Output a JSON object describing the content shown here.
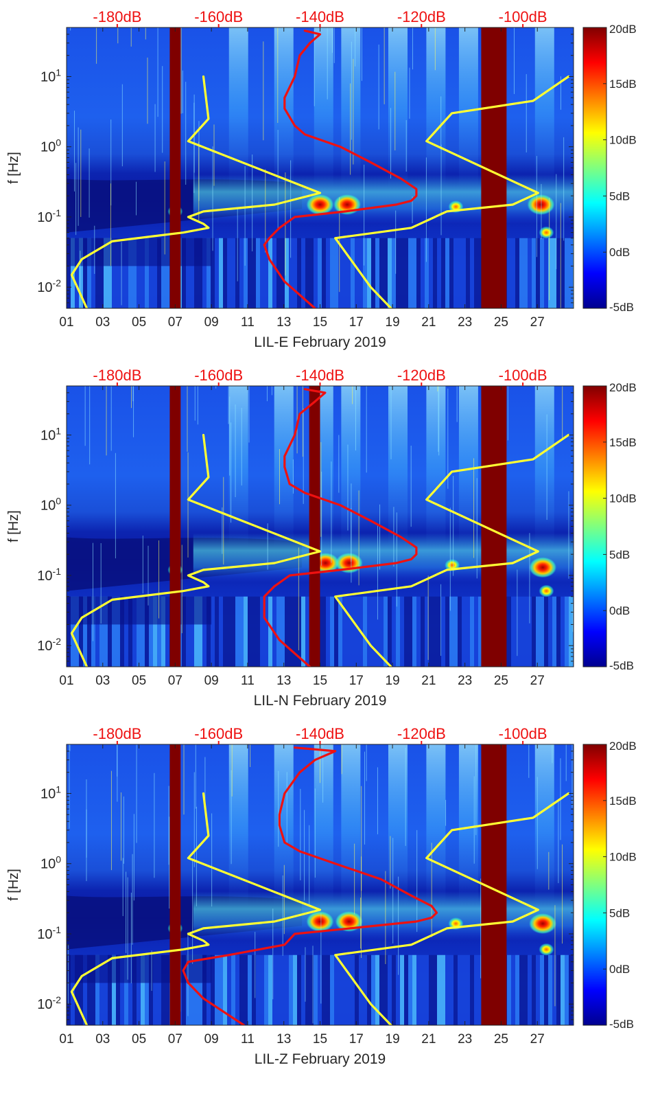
{
  "figure": {
    "colors": {
      "noise_model_curves": "#ffff33",
      "station_psd_curve": "#ee1111",
      "top_axis_text": "#ee1111",
      "data_gap": "#7f0000"
    }
  },
  "chart_data": [
    {
      "type": "heatmap",
      "title": "",
      "xlabel": "LIL-E February 2019",
      "ylabel": "f [Hz]",
      "x_ticks": [
        "01",
        "03",
        "05",
        "07",
        "09",
        "11",
        "13",
        "15",
        "17",
        "19",
        "21",
        "23",
        "25",
        "27"
      ],
      "x_range_days": [
        1,
        29
      ],
      "y_scale": "log",
      "y_range_hz": [
        0.005,
        50
      ],
      "y_ticks": [
        {
          "value": 0.01,
          "base": "10",
          "exp": "-2"
        },
        {
          "value": 0.1,
          "base": "10",
          "exp": "-1"
        },
        {
          "value": 1,
          "base": "10",
          "exp": "0"
        },
        {
          "value": 10,
          "base": "10",
          "exp": "1"
        }
      ],
      "top_axis": {
        "label_color": "#ee1111",
        "range_db": [
          -190,
          -90
        ],
        "ticks": [
          "-180dB",
          "-160dB",
          "-140dB",
          "-120dB",
          "-100dB"
        ],
        "tick_values": [
          -180,
          -160,
          -140,
          -120,
          -100
        ]
      },
      "colorbar": {
        "range_db": [
          -5,
          20
        ],
        "ticks": [
          "20dB",
          "15dB",
          "10dB",
          "5dB",
          "0dB",
          "-5dB"
        ],
        "tick_values": [
          20,
          15,
          10,
          5,
          0,
          -5
        ]
      },
      "data_gaps_days": [
        [
          6.7,
          7.3
        ],
        [
          23.9,
          25.3
        ]
      ],
      "spectral_peaks": [
        {
          "day": 15.0,
          "freq_hz": 0.15,
          "db": 18
        },
        {
          "day": 16.5,
          "freq_hz": 0.15,
          "db": 17
        },
        {
          "day": 27.2,
          "freq_hz": 0.15,
          "db": 18
        },
        {
          "day": 7.0,
          "freq_hz": 0.12,
          "db": 12
        },
        {
          "day": 22.5,
          "freq_hz": 0.14,
          "db": 12
        },
        {
          "day": 27.5,
          "freq_hz": 0.06,
          "db": 14
        }
      ],
      "series": [
        {
          "name": "NLNM",
          "color": "#ffff33",
          "freq_hz": [
            10,
            2.5,
            1.2,
            0.22,
            0.15,
            0.12,
            0.1,
            0.08,
            0.07,
            0.06,
            0.045,
            0.025,
            0.015,
            0.005
          ],
          "psd_db": [
            -163,
            -162,
            -166,
            -140,
            -149,
            -163,
            -166,
            -163,
            -162,
            -167,
            -181,
            -187,
            -189,
            -186
          ]
        },
        {
          "name": "NHNM",
          "color": "#ffff33",
          "freq_hz": [
            10,
            4.5,
            3,
            1.2,
            0.22,
            0.15,
            0.12,
            0.07,
            0.05,
            0.01,
            0.005
          ],
          "psd_db": [
            -91,
            -98,
            -114,
            -119,
            -97,
            -102,
            -115,
            -122,
            -137,
            -130,
            -126
          ]
        },
        {
          "name": "LIL-E PSD",
          "color": "#ee1111",
          "freq_hz": [
            45,
            40,
            30,
            20,
            10,
            5,
            3.5,
            2,
            1.5,
            1,
            0.6,
            0.35,
            0.25,
            0.2,
            0.17,
            0.15,
            0.12,
            0.1,
            0.07,
            0.05,
            0.04,
            0.025,
            0.012,
            0.005
          ],
          "psd_db": [
            -143,
            -140,
            -142,
            -144,
            -145,
            -147,
            -147,
            -145,
            -143,
            -136,
            -130,
            -124,
            -121,
            -121,
            -122,
            -125,
            -135,
            -145,
            -148,
            -150,
            -151,
            -150,
            -147,
            -141
          ]
        }
      ]
    },
    {
      "type": "heatmap",
      "title": "",
      "xlabel": "LIL-N February 2019",
      "ylabel": "f [Hz]",
      "x_ticks": [
        "01",
        "03",
        "05",
        "07",
        "09",
        "11",
        "13",
        "15",
        "17",
        "19",
        "21",
        "23",
        "25",
        "27"
      ],
      "x_range_days": [
        1,
        29
      ],
      "y_scale": "log",
      "y_range_hz": [
        0.005,
        50
      ],
      "y_ticks": [
        {
          "value": 0.01,
          "base": "10",
          "exp": "-2"
        },
        {
          "value": 0.1,
          "base": "10",
          "exp": "-1"
        },
        {
          "value": 1,
          "base": "10",
          "exp": "0"
        },
        {
          "value": 10,
          "base": "10",
          "exp": "1"
        }
      ],
      "top_axis": {
        "label_color": "#ee1111",
        "range_db": [
          -190,
          -90
        ],
        "ticks": [
          "-180dB",
          "-160dB",
          "-140dB",
          "-120dB",
          "-100dB"
        ],
        "tick_values": [
          -180,
          -160,
          -140,
          -120,
          -100
        ]
      },
      "colorbar": {
        "range_db": [
          -5,
          20
        ],
        "ticks": [
          "20dB",
          "15dB",
          "10dB",
          "5dB",
          "0dB",
          "-5dB"
        ],
        "tick_values": [
          20,
          15,
          10,
          5,
          0,
          -5
        ]
      },
      "data_gaps_days": [
        [
          6.7,
          7.3
        ],
        [
          14.4,
          15.0
        ],
        [
          23.9,
          25.3
        ]
      ],
      "spectral_peaks": [
        {
          "day": 15.3,
          "freq_hz": 0.15,
          "db": 17
        },
        {
          "day": 16.6,
          "freq_hz": 0.15,
          "db": 18
        },
        {
          "day": 27.3,
          "freq_hz": 0.13,
          "db": 19
        },
        {
          "day": 7.0,
          "freq_hz": 0.12,
          "db": 12
        },
        {
          "day": 22.3,
          "freq_hz": 0.14,
          "db": 12
        },
        {
          "day": 27.5,
          "freq_hz": 0.06,
          "db": 13
        }
      ],
      "series": [
        {
          "name": "NLNM",
          "color": "#ffff33",
          "freq_hz": [
            10,
            2.5,
            1.2,
            0.22,
            0.15,
            0.12,
            0.1,
            0.08,
            0.07,
            0.06,
            0.045,
            0.025,
            0.015,
            0.005
          ],
          "psd_db": [
            -163,
            -162,
            -166,
            -140,
            -149,
            -163,
            -166,
            -163,
            -162,
            -167,
            -181,
            -187,
            -189,
            -186
          ]
        },
        {
          "name": "NHNM",
          "color": "#ffff33",
          "freq_hz": [
            10,
            4.5,
            3,
            1.2,
            0.22,
            0.15,
            0.12,
            0.07,
            0.05,
            0.01,
            0.005
          ],
          "psd_db": [
            -91,
            -98,
            -114,
            -119,
            -97,
            -102,
            -115,
            -122,
            -137,
            -130,
            -126
          ]
        },
        {
          "name": "LIL-N PSD",
          "color": "#ee1111",
          "freq_hz": [
            45,
            40,
            30,
            20,
            10,
            5,
            3.5,
            2,
            1.5,
            1,
            0.6,
            0.35,
            0.25,
            0.2,
            0.17,
            0.15,
            0.12,
            0.1,
            0.07,
            0.05,
            0.04,
            0.025,
            0.012,
            0.005
          ],
          "psd_db": [
            -143,
            -139,
            -141,
            -144,
            -145,
            -147,
            -147,
            -146,
            -143,
            -136,
            -130,
            -124,
            -121,
            -121,
            -122,
            -125,
            -136,
            -146,
            -149,
            -151,
            -151,
            -151,
            -148,
            -142
          ]
        }
      ]
    },
    {
      "type": "heatmap",
      "title": "",
      "xlabel": "LIL-Z February 2019",
      "ylabel": "f [Hz]",
      "x_ticks": [
        "01",
        "03",
        "05",
        "07",
        "09",
        "11",
        "13",
        "15",
        "17",
        "19",
        "21",
        "23",
        "25",
        "27"
      ],
      "x_range_days": [
        1,
        29
      ],
      "y_scale": "log",
      "y_range_hz": [
        0.005,
        50
      ],
      "y_ticks": [
        {
          "value": 0.01,
          "base": "10",
          "exp": "-2"
        },
        {
          "value": 0.1,
          "base": "10",
          "exp": "-1"
        },
        {
          "value": 1,
          "base": "10",
          "exp": "0"
        },
        {
          "value": 10,
          "base": "10",
          "exp": "1"
        }
      ],
      "top_axis": {
        "label_color": "#ee1111",
        "range_db": [
          -190,
          -90
        ],
        "ticks": [
          "-180dB",
          "-160dB",
          "-140dB",
          "-120dB",
          "-100dB"
        ],
        "tick_values": [
          -180,
          -160,
          -140,
          -120,
          -100
        ]
      },
      "colorbar": {
        "range_db": [
          -5,
          20
        ],
        "ticks": [
          "20dB",
          "15dB",
          "10dB",
          "5dB",
          "0dB",
          "-5dB"
        ],
        "tick_values": [
          20,
          15,
          10,
          5,
          0,
          -5
        ]
      },
      "data_gaps_days": [
        [
          6.7,
          7.3
        ],
        [
          23.9,
          25.3
        ]
      ],
      "spectral_peaks": [
        {
          "day": 15.0,
          "freq_hz": 0.15,
          "db": 17
        },
        {
          "day": 16.6,
          "freq_hz": 0.15,
          "db": 17
        },
        {
          "day": 27.3,
          "freq_hz": 0.14,
          "db": 18
        },
        {
          "day": 7.0,
          "freq_hz": 0.12,
          "db": 12
        },
        {
          "day": 22.5,
          "freq_hz": 0.14,
          "db": 12
        },
        {
          "day": 27.5,
          "freq_hz": 0.06,
          "db": 13
        }
      ],
      "series": [
        {
          "name": "NLNM",
          "color": "#ffff33",
          "freq_hz": [
            10,
            2.5,
            1.2,
            0.22,
            0.15,
            0.12,
            0.1,
            0.08,
            0.07,
            0.06,
            0.045,
            0.025,
            0.015,
            0.005
          ],
          "psd_db": [
            -163,
            -162,
            -166,
            -140,
            -149,
            -163,
            -166,
            -163,
            -162,
            -167,
            -181,
            -187,
            -189,
            -186
          ]
        },
        {
          "name": "NHNM",
          "color": "#ffff33",
          "freq_hz": [
            10,
            4.5,
            3,
            1.2,
            0.22,
            0.15,
            0.12,
            0.07,
            0.05,
            0.01,
            0.005
          ],
          "psd_db": [
            -91,
            -98,
            -114,
            -119,
            -97,
            -102,
            -115,
            -122,
            -137,
            -130,
            -126
          ]
        },
        {
          "name": "LIL-Z PSD",
          "color": "#ee1111",
          "freq_hz": [
            45,
            40,
            30,
            20,
            10,
            5,
            3.5,
            2,
            1.5,
            1,
            0.6,
            0.35,
            0.25,
            0.2,
            0.17,
            0.15,
            0.12,
            0.1,
            0.07,
            0.05,
            0.04,
            0.03,
            0.02,
            0.012,
            0.005
          ],
          "psd_db": [
            -145,
            -137,
            -141,
            -144,
            -147,
            -148,
            -148,
            -147,
            -144,
            -137,
            -128,
            -122,
            -118,
            -117,
            -118,
            -121,
            -134,
            -145,
            -147,
            -158,
            -166,
            -167,
            -166,
            -163,
            -155
          ]
        }
      ]
    }
  ]
}
